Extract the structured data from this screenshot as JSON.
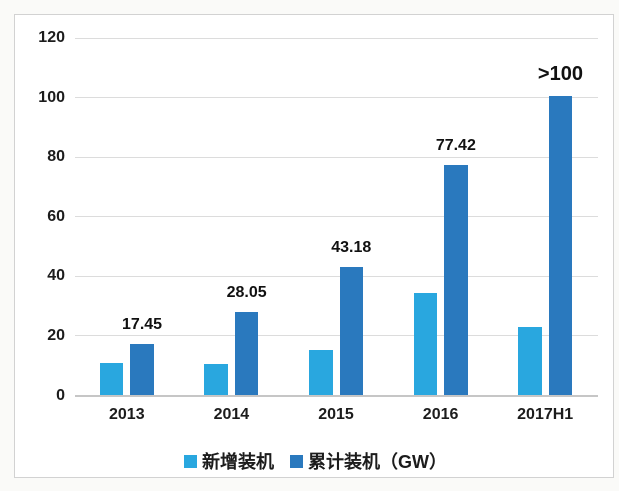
{
  "chart_data": {
    "type": "bar",
    "title": "",
    "categories": [
      "2013",
      "2014",
      "2015",
      "2016",
      "2017H1"
    ],
    "series": [
      {
        "name": "新增装机",
        "color": "#29A7DF",
        "values": [
          10.95,
          10.6,
          15.13,
          34.54,
          23.0
        ]
      },
      {
        "name": "累计装机（GW）",
        "color": "#2A79BE",
        "values": [
          17.45,
          28.05,
          43.18,
          77.42,
          100.4
        ]
      }
    ],
    "bar_labels": [
      "17.45",
      "28.05",
      "43.18",
      "77.42",
      ">100"
    ],
    "bar_labels_series": "累计装机（GW）",
    "y_ticks": [
      0,
      20,
      40,
      60,
      80,
      100,
      120
    ],
    "ylim": [
      0,
      120
    ],
    "xlabel": "",
    "ylabel": "",
    "grid": true,
    "legend_position": "bottom",
    "colors": {
      "new_install": "#29A7DF",
      "cumulative": "#2A79BE",
      "grid": "#dcdcdc",
      "axis": "#c6c6c6",
      "text": "#1c1c1c",
      "background": "#ffffff",
      "border": "#d2d2d2"
    }
  }
}
